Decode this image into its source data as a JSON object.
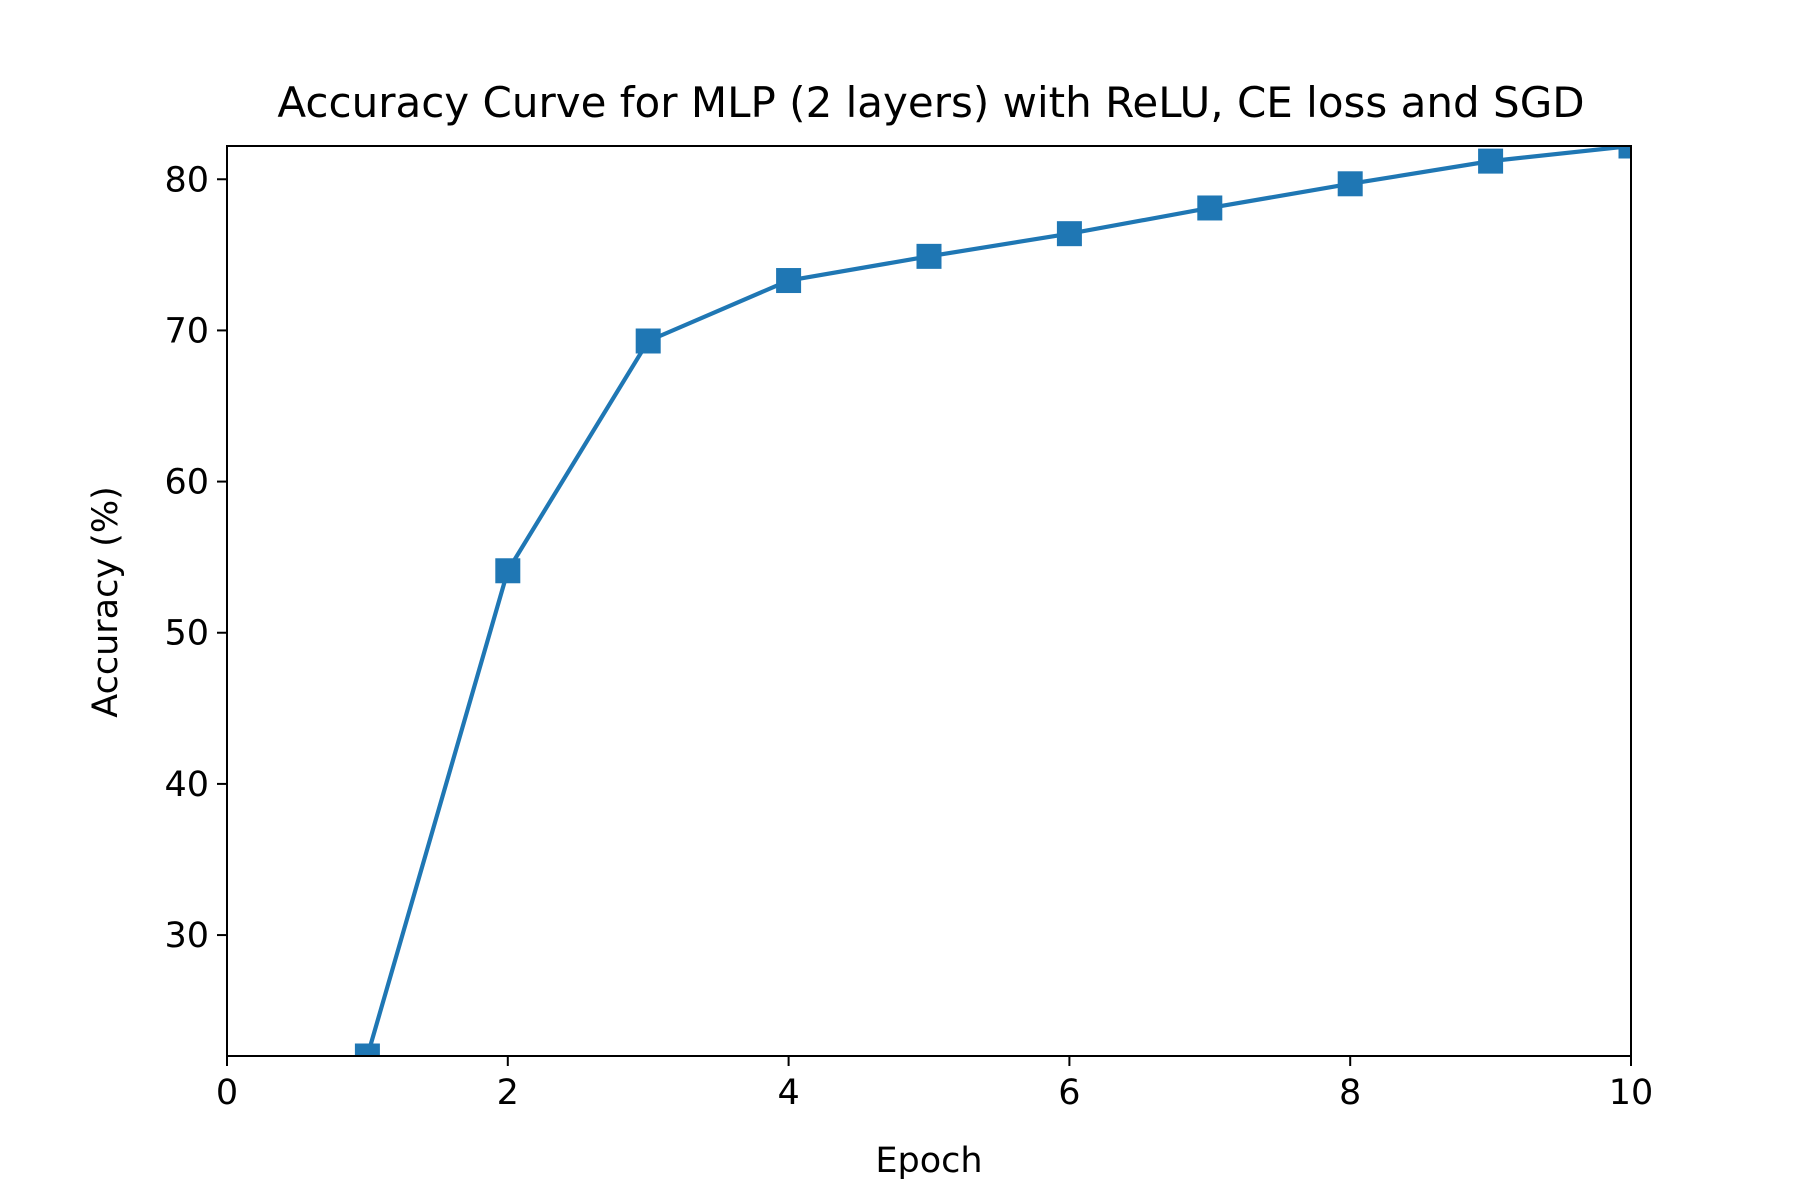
{
  "chart_data": {
    "type": "line",
    "title": "Accuracy Curve for MLP (2 layers) with ReLU, CE loss and SGD",
    "xlabel": "Epoch",
    "ylabel": "Accuracy (%)",
    "xlim": [
      0,
      10
    ],
    "ylim": [
      22,
      82.2
    ],
    "xticks": [
      "0",
      "2",
      "4",
      "6",
      "8",
      "10"
    ],
    "yticks": [
      "30",
      "40",
      "50",
      "60",
      "70",
      "80"
    ],
    "grid": false,
    "legend": "none",
    "series": [
      {
        "color": "#1f77b4",
        "marker": "square",
        "x": [
          1,
          2,
          3,
          4,
          5,
          6,
          7,
          8,
          9,
          10
        ],
        "y": [
          22.0,
          54.1,
          69.3,
          73.3,
          74.9,
          76.4,
          78.1,
          79.7,
          81.2,
          82.2
        ]
      }
    ]
  }
}
